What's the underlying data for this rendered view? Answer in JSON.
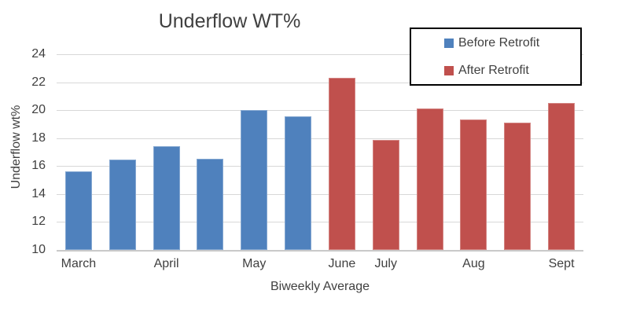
{
  "chart_data": {
    "type": "bar",
    "title": "Underflow WT%",
    "xlabel": "Biweekly Average",
    "ylabel": "Underflow wt%",
    "ylim": [
      10,
      24
    ],
    "yticks": [
      10,
      12,
      14,
      16,
      18,
      20,
      22,
      24
    ],
    "grid": true,
    "legend_position": "top-right",
    "categories": [
      "March",
      "",
      "April",
      "",
      "May",
      "",
      "June",
      "July",
      "",
      "Aug",
      "",
      "Sept"
    ],
    "series": [
      {
        "name": "Before Retrofit",
        "color": "#4f81bd",
        "values": [
          15.65,
          16.45,
          17.4,
          16.5,
          20.0,
          19.55,
          null,
          null,
          null,
          null,
          null,
          null
        ]
      },
      {
        "name": "After Retrofit",
        "color": "#c0504d",
        "values": [
          null,
          null,
          null,
          null,
          null,
          null,
          22.3,
          17.85,
          20.1,
          19.35,
          19.1,
          20.5
        ]
      }
    ],
    "colors": {
      "text": "#404040",
      "gridline": "#d8d8d8",
      "axis_line": "#c9c9c9",
      "legend_border": "#000000",
      "background": "#ffffff"
    }
  }
}
